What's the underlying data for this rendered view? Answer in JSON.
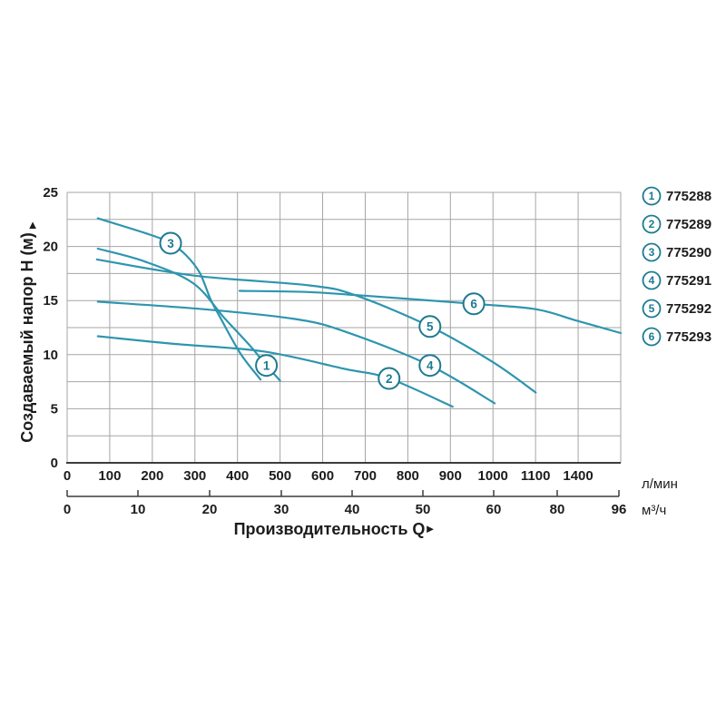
{
  "chart_data": {
    "type": "line",
    "title": "",
    "xlabel": "Производительность Q",
    "xlabel_arrow": "►",
    "ylabel": "Создаваемый напор Н (м)",
    "ylabel_arrow": "▲",
    "x_unit_primary": "л/мин",
    "x_unit_secondary": "м³/ч",
    "ylim": [
      0,
      25
    ],
    "grid": true,
    "y_ticks": [
      0,
      5,
      10,
      15,
      20,
      25
    ],
    "x_ticks_lmin": [
      0,
      100,
      200,
      300,
      400,
      500,
      600,
      700,
      800,
      900,
      1000,
      1100,
      1400
    ],
    "x_ticks_m3h": [
      0,
      10,
      20,
      30,
      40,
      50,
      60,
      80,
      96
    ],
    "legend_position": "right",
    "series": [
      {
        "id": "1",
        "article": "775288",
        "points": [
          [
            72,
            19.8
          ],
          [
            183,
            18.6
          ],
          [
            296,
            16.6
          ],
          [
            369,
            13.4
          ],
          [
            430,
            10.8
          ],
          [
            468,
            9.0
          ],
          [
            500,
            7.6
          ]
        ],
        "marker_at": [
          468,
          9.0
        ]
      },
      {
        "id": "2",
        "article": "775289",
        "points": [
          [
            72,
            11.7
          ],
          [
            250,
            11.0
          ],
          [
            460,
            10.3
          ],
          [
            650,
            8.7
          ],
          [
            756,
            7.8
          ],
          [
            905,
            5.2
          ]
        ],
        "marker_at": [
          756,
          7.8
        ]
      },
      {
        "id": "3",
        "article": "775290",
        "points": [
          [
            72,
            22.6
          ],
          [
            194,
            21.1
          ],
          [
            243,
            20.3
          ],
          [
            279,
            19.2
          ],
          [
            311,
            17.6
          ],
          [
            337,
            15.1
          ],
          [
            360,
            13.4
          ],
          [
            407,
            10.1
          ],
          [
            454,
            7.7
          ]
        ],
        "marker_at": [
          243,
          20.3
        ]
      },
      {
        "id": "4",
        "article": "775291",
        "points": [
          [
            72,
            14.9
          ],
          [
            320,
            14.2
          ],
          [
            535,
            13.3
          ],
          [
            655,
            12.1
          ],
          [
            852,
            9.0
          ],
          [
            1004,
            5.5
          ]
        ],
        "marker_at": [
          852,
          9.0
        ]
      },
      {
        "id": "5",
        "article": "775292",
        "points": [
          [
            70,
            18.8
          ],
          [
            300,
            17.3
          ],
          [
            569,
            16.4
          ],
          [
            676,
            15.5
          ],
          [
            852,
            12.6
          ],
          [
            1000,
            9.3
          ],
          [
            1101,
            6.5
          ]
        ],
        "marker_at": [
          852,
          12.6
        ]
      },
      {
        "id": "6",
        "article": "775293",
        "points": [
          [
            405,
            15.9
          ],
          [
            560,
            15.8
          ],
          [
            680,
            15.5
          ],
          [
            955,
            14.7
          ],
          [
            1100,
            14.2
          ],
          [
            1400,
            13.1
          ],
          [
            1600,
            12.0
          ]
        ],
        "marker_at": [
          955,
          14.7
        ]
      }
    ]
  },
  "colors": {
    "curve": "#2e95af",
    "marker_stroke": "#1d7a91",
    "marker_number": "#1d7a91",
    "grid": "#a5a5a5",
    "axis": "#3c3c3c",
    "text": "#1c1c1c",
    "background": "#ffffff"
  }
}
